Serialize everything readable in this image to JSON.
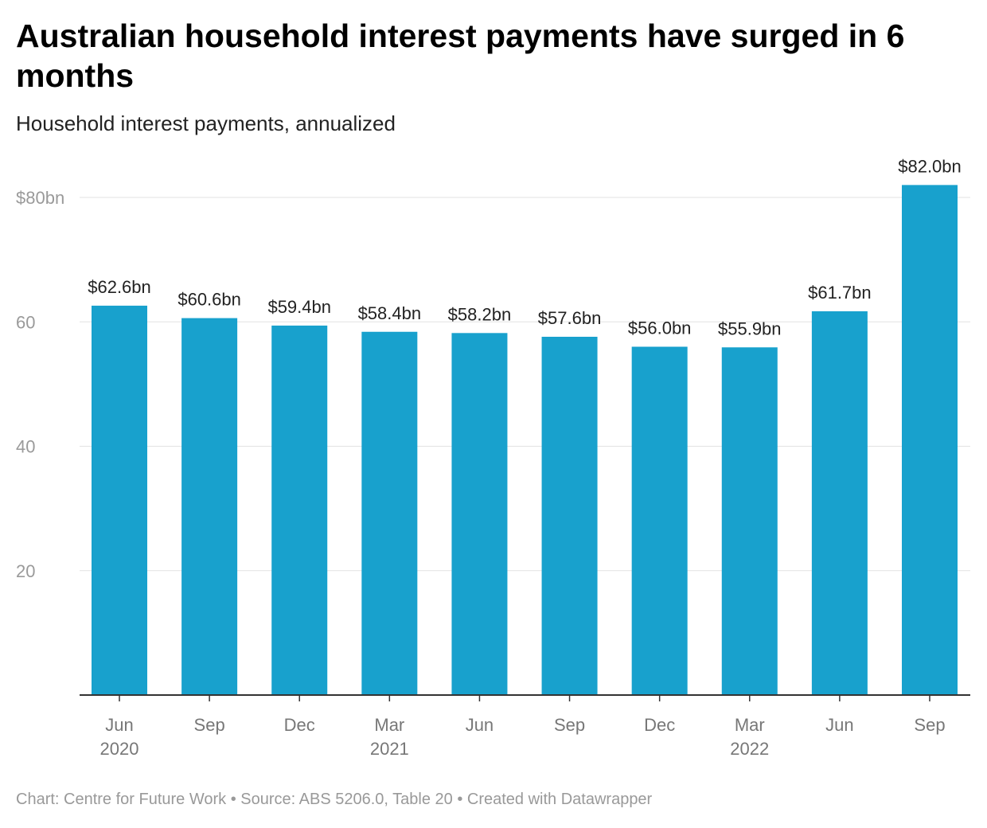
{
  "chart_data": {
    "type": "bar",
    "title": "Australian household interest payments have surged in 6 months",
    "subtitle": "Household interest payments, annualized",
    "categories": [
      "Jun 2020",
      "Sep 2020",
      "Dec 2020",
      "Mar 2021",
      "Jun 2021",
      "Sep 2021",
      "Dec 2021",
      "Mar 2022",
      "Jun 2022",
      "Sep 2022"
    ],
    "tick_labels": [
      [
        "Jun",
        "2020"
      ],
      [
        "Sep",
        ""
      ],
      [
        "Dec",
        ""
      ],
      [
        "Mar",
        "2021"
      ],
      [
        "Jun",
        ""
      ],
      [
        "Sep",
        ""
      ],
      [
        "Dec",
        ""
      ],
      [
        "Mar",
        "2022"
      ],
      [
        "Jun",
        ""
      ],
      [
        "Sep",
        ""
      ]
    ],
    "values": [
      62.6,
      60.6,
      59.4,
      58.4,
      58.2,
      57.6,
      56.0,
      55.9,
      61.7,
      82.0
    ],
    "data_labels": [
      "$62.6bn",
      "$60.6bn",
      "$59.4bn",
      "$58.4bn",
      "$58.2bn",
      "$57.6bn",
      "$56.0bn",
      "$55.9bn",
      "$61.7bn",
      "$82.0bn"
    ],
    "yticks": [
      20,
      40,
      60,
      80
    ],
    "ytick_labels": [
      "20",
      "40",
      "60",
      "$80bn"
    ],
    "ylim": [
      0,
      80
    ],
    "xlabel": "",
    "ylabel": "",
    "grid": true,
    "bar_color": "#18a1cd"
  },
  "footer": "Chart: Centre for Future Work • Source: ABS 5206.0, Table 20 • Created with Datawrapper"
}
